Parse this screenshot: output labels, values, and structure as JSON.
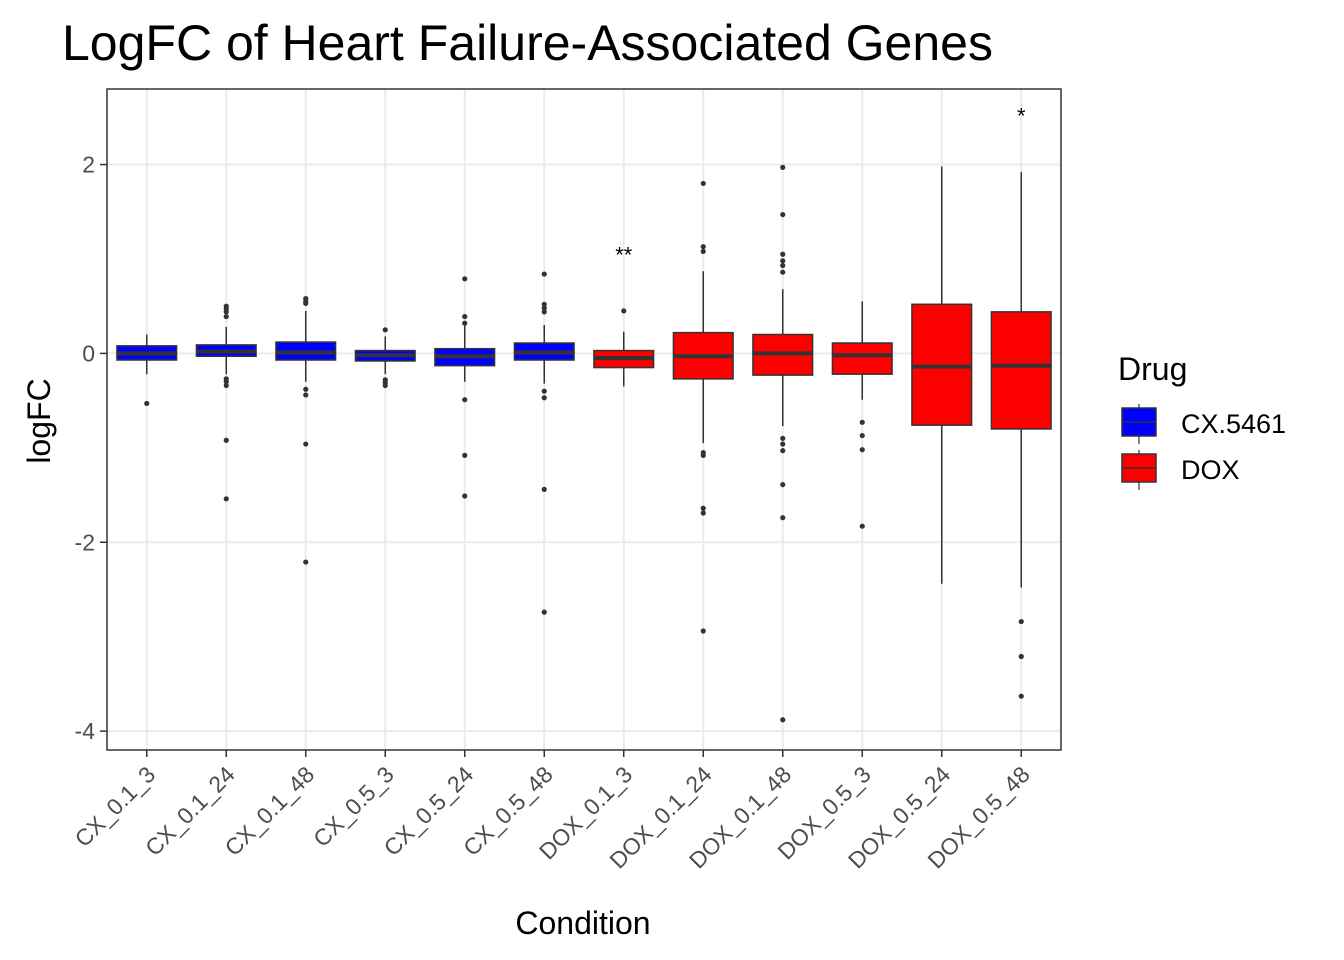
{
  "chart_data": {
    "type": "box",
    "title": "LogFC of Heart Failure-Associated Genes",
    "xlabel": "Condition",
    "ylabel": "logFC",
    "ylim": [
      -4.2,
      2.8
    ],
    "y_ticks": [
      2,
      0,
      -2,
      -4
    ],
    "y_tick_labels": [
      "2",
      "0",
      "-2",
      "-4"
    ],
    "grid": true,
    "legend": {
      "title": "Drug",
      "placement": "right",
      "entries": [
        {
          "label": "CX.5461",
          "color": "#0000ff"
        },
        {
          "label": "DOX",
          "color": "#ff0000"
        }
      ]
    },
    "categories": [
      "CX_0.1_3",
      "CX_0.1_24",
      "CX_0.1_48",
      "CX_0.5_3",
      "CX_0.5_24",
      "CX_0.5_48",
      "DOX_0.1_3",
      "DOX_0.1_24",
      "DOX_0.1_48",
      "DOX_0.5_3",
      "DOX_0.5_24",
      "DOX_0.5_48"
    ],
    "boxes": [
      {
        "category": "CX_0.1_3",
        "drug": "CX.5461",
        "whisker_low": -0.22,
        "q1": -0.07,
        "median": 0.0,
        "q3": 0.08,
        "whisker_high": 0.2,
        "outliers": [
          -0.53
        ]
      },
      {
        "category": "CX_0.1_24",
        "drug": "CX.5461",
        "whisker_low": -0.22,
        "q1": -0.03,
        "median": 0.02,
        "q3": 0.09,
        "whisker_high": 0.28,
        "outliers": [
          0.5,
          0.47,
          0.44,
          0.39,
          -0.27,
          -0.3,
          -0.34,
          -0.92,
          -1.54
        ]
      },
      {
        "category": "CX_0.1_48",
        "drug": "CX.5461",
        "whisker_low": -0.3,
        "q1": -0.07,
        "median": 0.01,
        "q3": 0.12,
        "whisker_high": 0.45,
        "outliers": [
          0.58,
          0.55,
          0.53,
          -0.38,
          -0.44,
          -0.96,
          -2.21
        ]
      },
      {
        "category": "CX_0.5_3",
        "drug": "CX.5461",
        "whisker_low": -0.22,
        "q1": -0.08,
        "median": -0.02,
        "q3": 0.03,
        "whisker_high": 0.18,
        "outliers": [
          0.25,
          -0.28,
          -0.31,
          -0.34
        ]
      },
      {
        "category": "CX_0.5_24",
        "drug": "CX.5461",
        "whisker_low": -0.3,
        "q1": -0.13,
        "median": -0.03,
        "q3": 0.05,
        "whisker_high": 0.3,
        "outliers": [
          0.79,
          0.39,
          0.32,
          -0.49,
          -1.08,
          -1.51
        ]
      },
      {
        "category": "CX_0.5_48",
        "drug": "CX.5461",
        "whisker_low": -0.32,
        "q1": -0.07,
        "median": 0.01,
        "q3": 0.11,
        "whisker_high": 0.3,
        "outliers": [
          0.84,
          0.52,
          0.48,
          0.44,
          -0.4,
          -0.47,
          -1.44,
          -2.74
        ]
      },
      {
        "category": "DOX_0.1_3",
        "drug": "DOX",
        "whisker_low": -0.35,
        "q1": -0.15,
        "median": -0.05,
        "q3": 0.03,
        "whisker_high": 0.23,
        "outliers": [
          0.45
        ]
      },
      {
        "category": "DOX_0.1_24",
        "drug": "DOX",
        "whisker_low": -0.95,
        "q1": -0.27,
        "median": -0.03,
        "q3": 0.22,
        "whisker_high": 0.87,
        "outliers": [
          1.8,
          1.13,
          1.08,
          -1.05,
          -1.08,
          -1.64,
          -1.69,
          -2.94
        ]
      },
      {
        "category": "DOX_0.1_48",
        "drug": "DOX",
        "whisker_low": -0.77,
        "q1": -0.23,
        "median": 0.0,
        "q3": 0.2,
        "whisker_high": 0.68,
        "outliers": [
          1.97,
          1.47,
          1.05,
          0.98,
          0.93,
          0.86,
          -0.9,
          -0.96,
          -1.03,
          -1.39,
          -1.74,
          -3.88
        ]
      },
      {
        "category": "DOX_0.5_3",
        "drug": "DOX",
        "whisker_low": -0.49,
        "q1": -0.22,
        "median": -0.02,
        "q3": 0.11,
        "whisker_high": 0.55,
        "outliers": [
          -0.73,
          -0.87,
          -1.02,
          -1.83
        ]
      },
      {
        "category": "DOX_0.5_24",
        "drug": "DOX",
        "whisker_low": -2.44,
        "q1": -0.76,
        "median": -0.14,
        "q3": 0.52,
        "whisker_high": 1.98,
        "outliers": []
      },
      {
        "category": "DOX_0.5_48",
        "drug": "DOX",
        "whisker_low": -2.48,
        "q1": -0.8,
        "median": -0.13,
        "q3": 0.44,
        "whisker_high": 1.92,
        "outliers": [
          -2.84,
          -3.21,
          -3.63
        ]
      }
    ],
    "annotations": [
      {
        "category": "DOX_0.1_3",
        "text": "**",
        "y": 1.05
      },
      {
        "category": "DOX_0.5_48",
        "text": "*",
        "y": 2.52
      }
    ]
  }
}
